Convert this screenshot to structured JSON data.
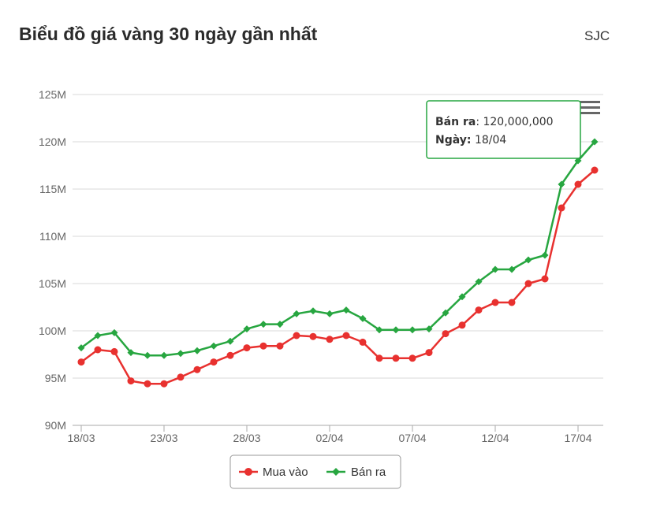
{
  "header": {
    "title": "Biểu đồ giá vàng 30 ngày gần nhất",
    "brand": "SJC"
  },
  "menu_icon": "hamburger-menu-icon",
  "tooltip": {
    "series_label": "Bán ra",
    "value_text": "120,000,000",
    "date_label": "Ngày:",
    "date_value": "18/04",
    "border_color": "#27a640"
  },
  "chart_data": {
    "type": "line",
    "title": "",
    "xlabel": "",
    "ylabel": "",
    "ylim": [
      90,
      125
    ],
    "yticks": [
      90,
      95,
      100,
      105,
      110,
      115,
      120,
      125
    ],
    "ytick_labels": [
      "90M",
      "95M",
      "100M",
      "105M",
      "110M",
      "115M",
      "120M",
      "125M"
    ],
    "x": [
      "18/03",
      "19/03",
      "20/03",
      "21/03",
      "22/03",
      "23/03",
      "24/03",
      "25/03",
      "26/03",
      "27/03",
      "28/03",
      "29/03",
      "30/03",
      "31/03",
      "01/04",
      "02/04",
      "03/04",
      "04/04",
      "05/04",
      "06/04",
      "07/04",
      "08/04",
      "09/04",
      "10/04",
      "11/04",
      "12/04",
      "13/04",
      "14/04",
      "15/04",
      "16/04",
      "17/04",
      "18/04"
    ],
    "xtick_labels": [
      "18/03",
      "23/03",
      "28/03",
      "02/04",
      "07/04",
      "12/04",
      "17/04"
    ],
    "xtick_positions": [
      0,
      5,
      10,
      15,
      20,
      25,
      30
    ],
    "grid": true,
    "legend_position": "bottom-center",
    "series": [
      {
        "name": "Mua vào",
        "color": "#e8312f",
        "marker": "circle",
        "values": [
          96.7,
          98.0,
          97.8,
          94.7,
          94.4,
          94.4,
          95.1,
          95.9,
          96.7,
          97.4,
          98.2,
          98.4,
          98.4,
          99.5,
          99.4,
          99.1,
          99.5,
          98.8,
          97.1,
          97.1,
          97.1,
          97.7,
          99.7,
          100.6,
          102.2,
          103.0,
          103.0,
          105.0,
          105.5,
          113.0,
          115.5,
          117.0
        ]
      },
      {
        "name": "Bán ra",
        "color": "#27a640",
        "marker": "diamond",
        "values": [
          98.2,
          99.5,
          99.8,
          97.7,
          97.4,
          97.4,
          97.6,
          97.9,
          98.4,
          98.9,
          100.2,
          100.7,
          100.7,
          101.8,
          102.1,
          101.8,
          102.2,
          101.3,
          100.1,
          100.1,
          100.1,
          100.2,
          101.9,
          103.6,
          105.2,
          106.5,
          106.5,
          107.5,
          108.0,
          115.5,
          118.0,
          120.0
        ]
      }
    ]
  }
}
